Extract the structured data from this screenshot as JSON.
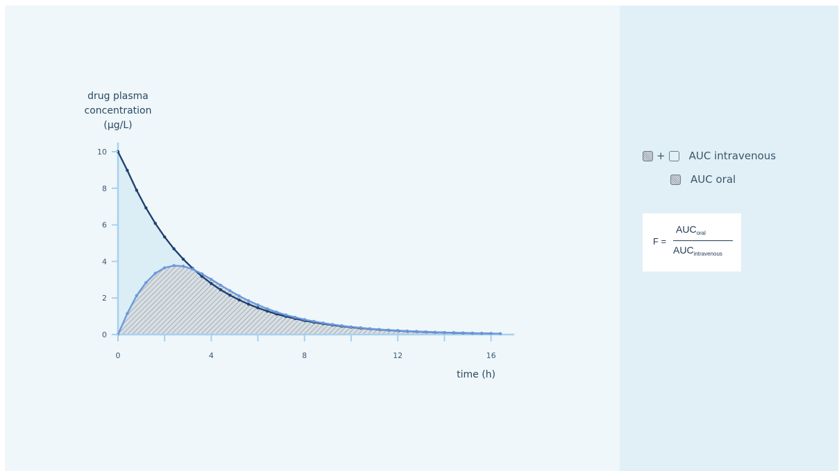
{
  "chart_data": {
    "type": "area",
    "ylabel": [
      "drug plasma",
      "concentration",
      "(µg/L)"
    ],
    "xlabel": "time (h)",
    "xlim": [
      0,
      17
    ],
    "ylim": [
      0,
      10.5
    ],
    "x_ticks": [
      0,
      4,
      8,
      12,
      16
    ],
    "x_minor_ticks": [
      2,
      6,
      10,
      14
    ],
    "y_ticks": [
      0,
      2,
      4,
      6,
      8,
      10
    ],
    "grid": false,
    "legend_position": "right",
    "series": [
      {
        "name": "intravenous",
        "color": "#1f4170",
        "fill": "#dbeef5",
        "x": [
          0,
          0.4,
          0.8,
          1.2,
          1.6,
          2.0,
          2.4,
          2.8,
          3.2,
          3.6,
          4.0,
          4.4,
          4.8,
          5.2,
          5.6,
          6.0,
          6.4,
          6.8,
          7.2,
          7.6,
          8.0,
          8.4,
          8.8,
          9.2,
          9.6,
          10.0,
          10.4,
          10.8,
          11.2,
          11.6,
          12.0,
          12.4,
          12.8,
          13.2,
          13.6,
          14.0,
          14.4,
          14.8,
          15.2,
          15.6,
          16.0
        ],
        "y": [
          10.0,
          8.98,
          7.89,
          6.93,
          6.08,
          5.34,
          4.69,
          4.12,
          3.62,
          3.18,
          2.79,
          2.45,
          2.15,
          1.89,
          1.66,
          1.46,
          1.28,
          1.12,
          0.99,
          0.87,
          0.76,
          0.67,
          0.59,
          0.52,
          0.45,
          0.4,
          0.35,
          0.31,
          0.27,
          0.24,
          0.21,
          0.18,
          0.16,
          0.14,
          0.12,
          0.11,
          0.095,
          0.083,
          0.073,
          0.064,
          0.056
        ]
      },
      {
        "name": "oral",
        "color": "#6c98dc",
        "x": [
          0,
          0.4,
          0.8,
          1.2,
          1.6,
          2.0,
          2.4,
          2.8,
          3.2,
          3.6,
          4.0,
          4.4,
          4.8,
          5.2,
          5.6,
          6.0,
          6.4,
          6.8,
          7.2,
          7.6,
          8.0,
          8.4,
          8.8,
          9.2,
          9.6,
          10.0,
          10.4,
          10.8,
          11.2,
          11.6,
          12.0,
          12.4,
          12.8,
          13.2,
          13.6,
          14.0,
          14.4,
          14.8,
          15.2,
          15.6,
          16.0,
          16.4
        ],
        "y": [
          0,
          1.15,
          2.13,
          2.84,
          3.35,
          3.65,
          3.77,
          3.74,
          3.58,
          3.32,
          3.02,
          2.7,
          2.4,
          2.11,
          1.85,
          1.62,
          1.41,
          1.23,
          1.07,
          0.94,
          0.82,
          0.72,
          0.63,
          0.55,
          0.48,
          0.42,
          0.37,
          0.32,
          0.28,
          0.25,
          0.22,
          0.19,
          0.17,
          0.15,
          0.13,
          0.11,
          0.1,
          0.09,
          0.08,
          0.07,
          0.06,
          0.05
        ]
      }
    ]
  },
  "legend": {
    "plus": "+",
    "iv_label": "AUC intravenous",
    "oral_label": "AUC oral",
    "hatched_swatch_icon": "hatched-square",
    "empty_swatch_icon": "empty-square"
  },
  "formula": {
    "lhs": "F =",
    "numerator": "AUC",
    "numerator_sub": "oral",
    "denominator": "AUC",
    "denominator_sub": "intravenous"
  },
  "colors": {
    "main_background": "#eff7fa",
    "side_background": "#e1f0f6",
    "axis": "#a9d0ee"
  }
}
